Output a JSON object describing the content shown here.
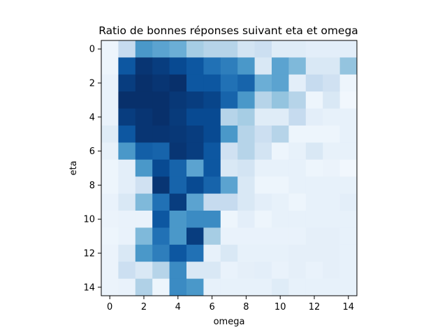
{
  "chart_data": {
    "type": "heatmap",
    "title": "Ratio de bonnes réponses suivant eta et omega",
    "xlabel": "omega",
    "ylabel": "eta",
    "x_ticks": [
      0,
      2,
      4,
      6,
      8,
      10,
      12,
      14
    ],
    "y_ticks": [
      0,
      2,
      4,
      6,
      8,
      10,
      12,
      14
    ],
    "xlim": [
      -0.5,
      14.5
    ],
    "ylim": [
      14.5,
      -0.5
    ],
    "colormap": "Blues",
    "value_range": [
      0,
      1
    ],
    "grid": false,
    "z": [
      [
        0.05,
        0.25,
        0.6,
        0.55,
        0.5,
        0.35,
        0.3,
        0.3,
        0.18,
        0.22,
        0.12,
        0.12,
        0.1,
        0.1,
        0.1
      ],
      [
        0.05,
        0.85,
        0.98,
        0.95,
        0.9,
        0.85,
        0.75,
        0.7,
        0.6,
        0.15,
        0.55,
        0.45,
        0.15,
        0.15,
        0.4
      ],
      [
        0.07,
        0.95,
        1.0,
        0.98,
        1.0,
        0.85,
        0.85,
        0.75,
        0.8,
        0.5,
        0.55,
        0.1,
        0.25,
        0.2,
        0.05
      ],
      [
        0.07,
        1.0,
        1.0,
        1.0,
        0.97,
        0.95,
        0.92,
        0.8,
        0.6,
        0.3,
        0.4,
        0.3,
        0.05,
        0.15,
        0.03
      ],
      [
        0.07,
        0.95,
        0.98,
        1.0,
        0.96,
        0.9,
        0.9,
        0.3,
        0.35,
        0.12,
        0.12,
        0.25,
        0.1,
        0.08,
        0.08
      ],
      [
        0.12,
        0.85,
        0.98,
        0.98,
        0.97,
        0.95,
        0.9,
        0.6,
        0.3,
        0.22,
        0.3,
        0.05,
        0.05,
        0.05,
        0.08
      ],
      [
        0.08,
        0.6,
        0.82,
        0.8,
        0.98,
        0.95,
        0.85,
        0.2,
        0.3,
        0.18,
        0.05,
        0.08,
        0.15,
        0.08,
        0.08
      ],
      [
        0.05,
        0.1,
        0.6,
        0.9,
        0.8,
        0.55,
        0.85,
        0.15,
        0.18,
        0.08,
        0.08,
        0.08,
        0.05,
        0.06,
        0.03
      ],
      [
        0.05,
        0.1,
        0.2,
        0.98,
        0.8,
        0.9,
        0.8,
        0.55,
        0.15,
        0.05,
        0.05,
        0.08,
        0.08,
        0.08,
        0.08
      ],
      [
        0.07,
        0.15,
        0.45,
        0.75,
        0.95,
        0.55,
        0.25,
        0.25,
        0.15,
        0.1,
        0.08,
        0.05,
        0.08,
        0.08,
        0.1
      ],
      [
        0.06,
        0.07,
        0.07,
        0.85,
        0.6,
        0.65,
        0.65,
        0.05,
        0.1,
        0.05,
        0.08,
        0.08,
        0.08,
        0.08,
        0.08
      ],
      [
        0.05,
        0.07,
        0.45,
        0.75,
        0.6,
        0.95,
        0.35,
        0.07,
        0.07,
        0.07,
        0.07,
        0.07,
        0.09,
        0.09,
        0.08
      ],
      [
        0.06,
        0.15,
        0.6,
        0.7,
        0.85,
        0.75,
        0.08,
        0.15,
        0.08,
        0.08,
        0.08,
        0.09,
        0.09,
        0.09,
        0.08
      ],
      [
        0.06,
        0.22,
        0.15,
        0.3,
        0.65,
        0.15,
        0.15,
        0.07,
        0.09,
        0.1,
        0.07,
        0.09,
        0.07,
        0.09,
        0.08
      ],
      [
        0.06,
        0.07,
        0.32,
        0.05,
        0.65,
        0.6,
        0.08,
        0.08,
        0.08,
        0.08,
        0.12,
        0.08,
        0.08,
        0.08,
        0.08
      ]
    ]
  }
}
